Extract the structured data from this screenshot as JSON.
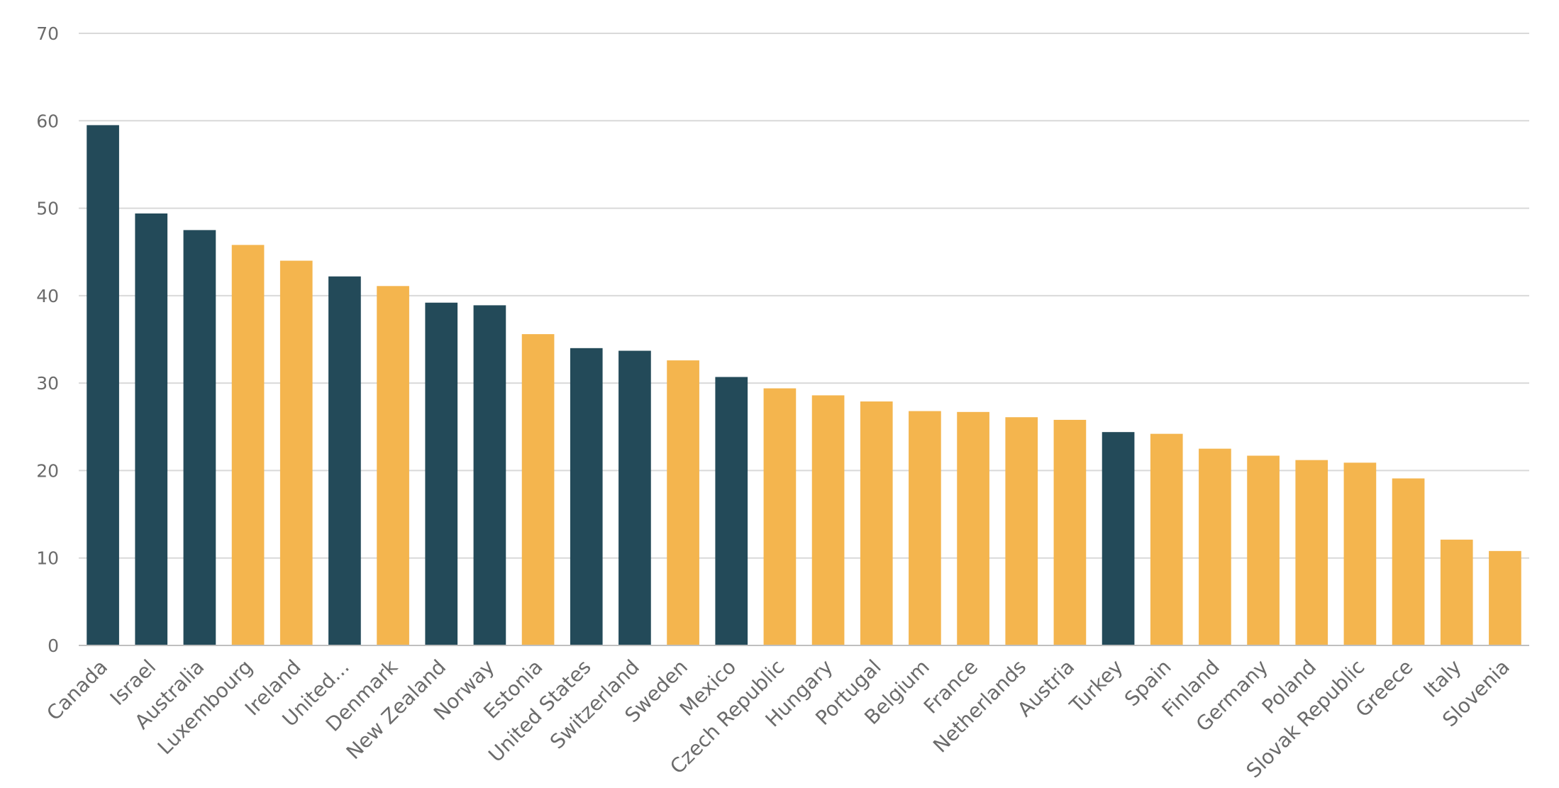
{
  "chart_data": {
    "type": "bar",
    "title": "",
    "xlabel": "",
    "ylabel": "",
    "ylim": [
      0,
      70
    ],
    "yticks": [
      0,
      10,
      20,
      30,
      40,
      50,
      60,
      70
    ],
    "grid": true,
    "legend": "none",
    "colors": {
      "dark": "#234a59",
      "light": "#f4b54e",
      "grid": "#d9d9d9",
      "axis": "#bfbfbf",
      "text": "#6b6b6b"
    },
    "categories": [
      "Canada",
      "Israel",
      "Australia",
      "Luxembourg",
      "Ireland",
      "United...",
      "Denmark",
      "New Zealand",
      "Norway",
      "Estonia",
      "United States",
      "Switzerland",
      "Sweden",
      "Mexico",
      "Czech Republic",
      "Hungary",
      "Portugal",
      "Belgium",
      "France",
      "Netherlands",
      "Austria",
      "Turkey",
      "Spain",
      "Finland",
      "Germany",
      "Poland",
      "Slovak Republic",
      "Greece",
      "Italy",
      "Slovenia"
    ],
    "values": [
      59.5,
      49.4,
      47.5,
      45.8,
      44.0,
      42.2,
      41.1,
      39.2,
      38.9,
      35.6,
      34.0,
      33.7,
      32.6,
      30.7,
      29.4,
      28.6,
      27.9,
      26.8,
      26.7,
      26.1,
      25.8,
      24.4,
      24.2,
      22.5,
      21.7,
      21.2,
      20.9,
      19.1,
      12.1,
      10.8
    ],
    "bar_colors": [
      "dark",
      "dark",
      "dark",
      "light",
      "light",
      "dark",
      "light",
      "dark",
      "dark",
      "light",
      "dark",
      "dark",
      "light",
      "dark",
      "light",
      "light",
      "light",
      "light",
      "light",
      "light",
      "light",
      "dark",
      "light",
      "light",
      "light",
      "light",
      "light",
      "light",
      "light",
      "light"
    ]
  }
}
